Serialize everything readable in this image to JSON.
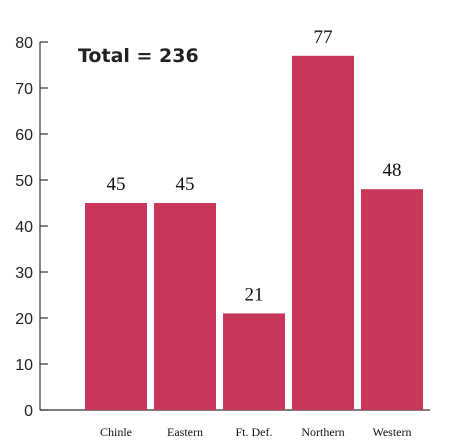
{
  "chart_data": {
    "type": "bar",
    "title": "",
    "xlabel": "",
    "ylabel": "",
    "categories": [
      "Chinle",
      "Eastern",
      "Ft. Def.",
      "Northern",
      "Western"
    ],
    "values": [
      45,
      45,
      21,
      77,
      48
    ],
    "data_labels": [
      "45",
      "45",
      "21",
      "77",
      "48"
    ],
    "ylim": [
      0,
      80
    ],
    "yticks": [
      0,
      10,
      20,
      30,
      40,
      50,
      60,
      70,
      80
    ],
    "annotation": "Total = 236",
    "bar_color": "#c8375a",
    "grid": false,
    "legend": "none"
  }
}
